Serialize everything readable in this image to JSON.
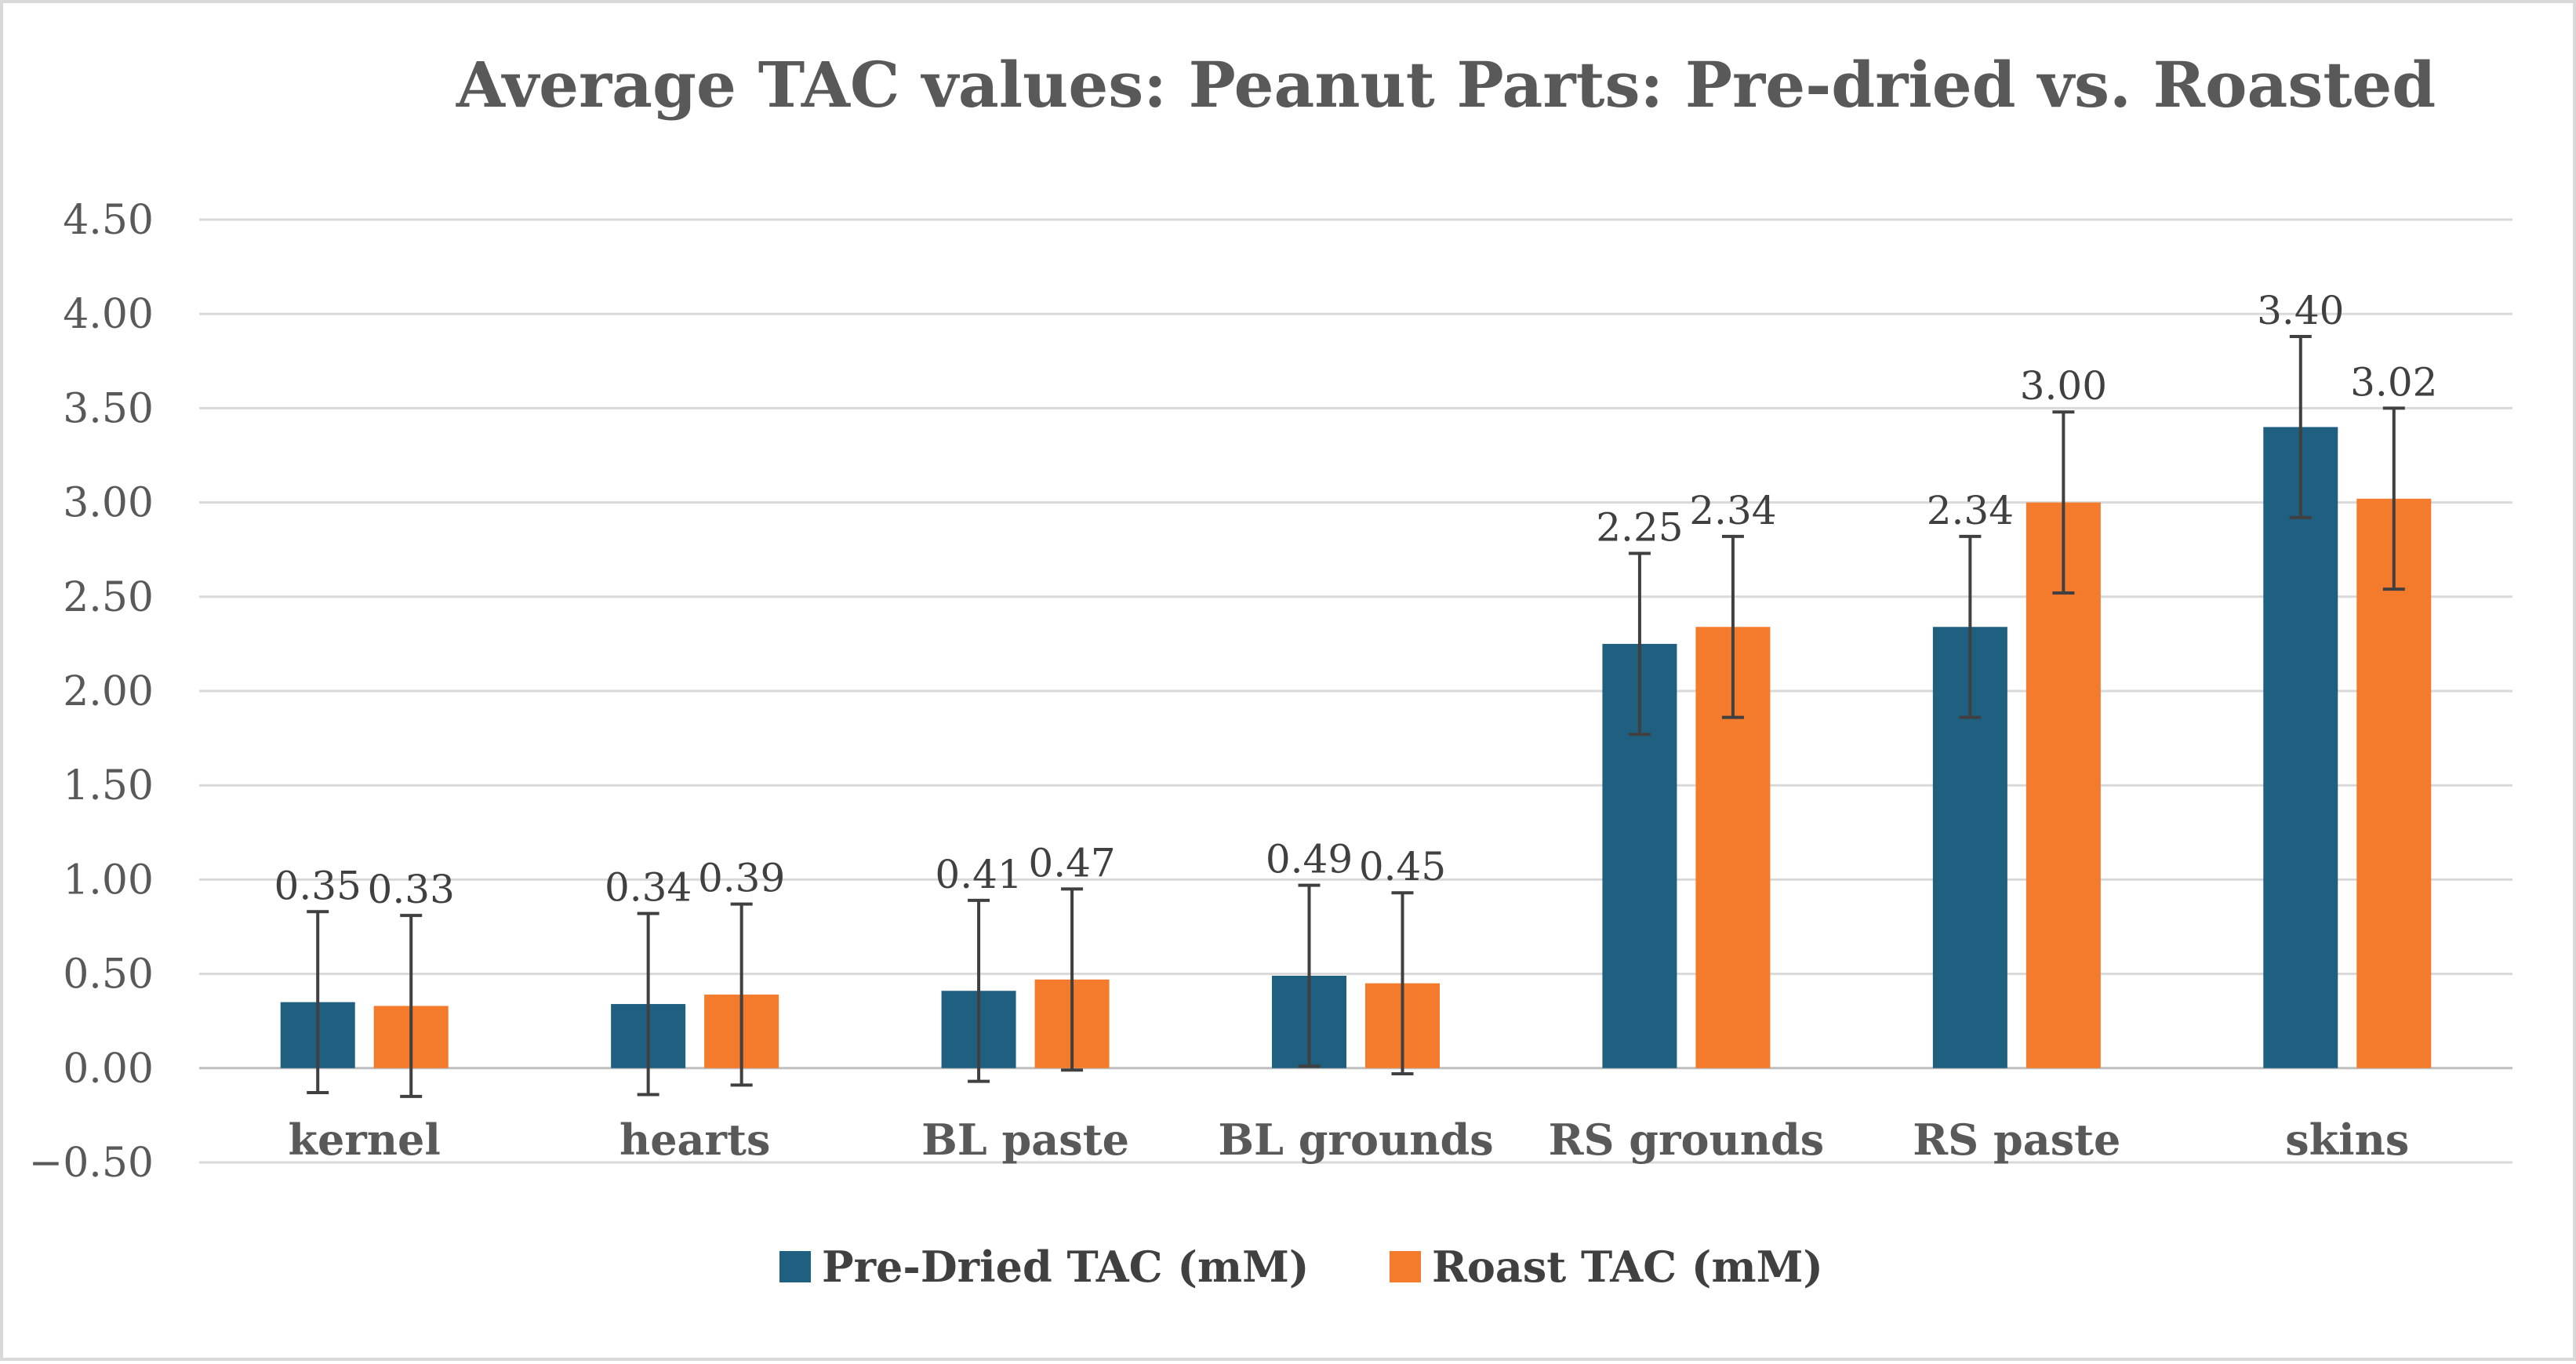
{
  "chart_data": {
    "type": "bar",
    "title": "Average TAC values: Peanut Parts: Pre-dried vs. Roasted",
    "xlabel": "",
    "ylabel": "",
    "categories": [
      "kernel",
      "hearts",
      "BL paste",
      "BL grounds",
      "RS grounds",
      "RS paste",
      "skins"
    ],
    "series": [
      {
        "name": "Pre-Dried TAC (mM)",
        "color": "#1f5f7f",
        "values": [
          0.35,
          0.34,
          0.41,
          0.49,
          2.25,
          2.34,
          3.4
        ],
        "labels": [
          "0.35",
          "0.34",
          "0.41",
          "0.49",
          "2.25",
          "2.34",
          "3.40"
        ],
        "error": [
          0.48,
          0.48,
          0.48,
          0.48,
          0.48,
          0.48,
          0.48
        ]
      },
      {
        "name": "Roast TAC (mM)",
        "color": "#f47a2c",
        "values": [
          0.33,
          0.39,
          0.47,
          0.45,
          2.34,
          3.0,
          3.02
        ],
        "labels": [
          "0.33",
          "0.39",
          "0.47",
          "0.45",
          "2.34",
          "3.00",
          "3.02"
        ],
        "error": [
          0.48,
          0.48,
          0.48,
          0.48,
          0.48,
          0.48,
          0.48
        ]
      }
    ],
    "ylim": [
      -0.5,
      4.5
    ],
    "yticks": [
      4.5,
      4.0,
      3.5,
      3.0,
      2.5,
      2.0,
      1.5,
      1.0,
      0.5,
      0.0,
      -0.5
    ],
    "ytick_labels": [
      "4.50",
      "4.00",
      "3.50",
      "3.00",
      "2.50",
      "2.00",
      "1.50",
      "1.00",
      "0.50",
      "0.00",
      "−0.50"
    ],
    "grid": true,
    "legend_position": "bottom"
  }
}
